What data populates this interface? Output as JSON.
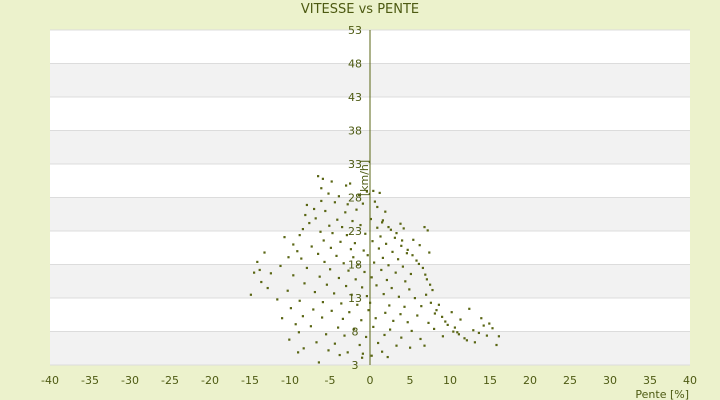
{
  "chart_data": {
    "type": "scatter",
    "title": "VITESSE vs PENTE",
    "xlabel": "Pente [%]",
    "ylabel": "[km/h]",
    "xlim": [
      -40,
      40
    ],
    "ylim": [
      3,
      53
    ],
    "xticks": [
      -40,
      -35,
      -30,
      -25,
      -20,
      -15,
      -10,
      -5,
      0,
      5,
      10,
      15,
      20,
      25,
      30,
      35,
      40
    ],
    "yticks": [
      3,
      8,
      13,
      18,
      23,
      28,
      33,
      38,
      43,
      48,
      53
    ],
    "grid": true,
    "band_colors": [
      "#ffffff",
      "#f2f2f2"
    ],
    "point_color": "#5a6614",
    "series": [
      {
        "points": [
          [
            -6.5,
            31.2
          ],
          [
            -5.9,
            30.8
          ],
          [
            -4.8,
            30.4
          ],
          [
            -2.5,
            30.1
          ],
          [
            0.4,
            29.0
          ],
          [
            -5.2,
            28.6
          ],
          [
            -3.9,
            28.2
          ],
          [
            -1.4,
            28.4
          ],
          [
            1.2,
            28.7
          ],
          [
            -6.1,
            27.5
          ],
          [
            -4.4,
            27.3
          ],
          [
            -2.8,
            27.0
          ],
          [
            -0.9,
            27.1
          ],
          [
            0.6,
            27.4
          ],
          [
            -7.0,
            26.3
          ],
          [
            -5.6,
            26.0
          ],
          [
            -3.1,
            25.8
          ],
          [
            -1.7,
            26.2
          ],
          [
            1.9,
            25.9
          ],
          [
            -8.1,
            25.4
          ],
          [
            -6.8,
            24.9
          ],
          [
            -4.1,
            24.7
          ],
          [
            -2.2,
            24.5
          ],
          [
            0.1,
            24.8
          ],
          [
            1.5,
            24.3
          ],
          [
            3.8,
            24.1
          ],
          [
            -7.6,
            24.2
          ],
          [
            -5.1,
            23.8
          ],
          [
            -3.5,
            23.6
          ],
          [
            -1.2,
            23.9
          ],
          [
            0.9,
            23.5
          ],
          [
            2.6,
            23.2
          ],
          [
            4.2,
            23.4
          ],
          [
            6.8,
            23.6
          ],
          [
            7.2,
            23.1
          ],
          [
            -8.4,
            23.3
          ],
          [
            -6.2,
            22.9
          ],
          [
            -4.7,
            22.7
          ],
          [
            -2.9,
            22.4
          ],
          [
            -0.6,
            22.6
          ],
          [
            1.3,
            22.2
          ],
          [
            3.1,
            22.0
          ],
          [
            5.4,
            21.7
          ],
          [
            -10.7,
            22.1
          ],
          [
            -5.8,
            21.6
          ],
          [
            -3.7,
            21.4
          ],
          [
            -1.9,
            21.2
          ],
          [
            0.3,
            21.5
          ],
          [
            2.0,
            21.1
          ],
          [
            3.9,
            20.8
          ],
          [
            6.2,
            20.9
          ],
          [
            -7.3,
            20.7
          ],
          [
            -4.9,
            20.5
          ],
          [
            -2.4,
            20.3
          ],
          [
            -0.8,
            20.1
          ],
          [
            1.1,
            20.4
          ],
          [
            2.8,
            19.9
          ],
          [
            4.6,
            19.7
          ],
          [
            7.4,
            19.8
          ],
          [
            -13.2,
            19.8
          ],
          [
            -9.1,
            20.0
          ],
          [
            -6.5,
            19.6
          ],
          [
            -4.2,
            19.3
          ],
          [
            -2.1,
            19.1
          ],
          [
            -0.3,
            19.4
          ],
          [
            1.6,
            19.0
          ],
          [
            3.5,
            18.8
          ],
          [
            5.8,
            18.6
          ],
          [
            -14.1,
            18.4
          ],
          [
            -8.6,
            18.9
          ],
          [
            -5.7,
            18.4
          ],
          [
            -3.3,
            18.2
          ],
          [
            -1.5,
            18.0
          ],
          [
            0.5,
            18.3
          ],
          [
            2.3,
            17.9
          ],
          [
            4.1,
            17.7
          ],
          [
            6.6,
            17.5
          ],
          [
            -11.2,
            17.8
          ],
          [
            -7.9,
            17.5
          ],
          [
            -5.0,
            17.3
          ],
          [
            -2.7,
            17.1
          ],
          [
            -0.7,
            16.9
          ],
          [
            1.4,
            17.2
          ],
          [
            3.2,
            16.8
          ],
          [
            5.1,
            16.6
          ],
          [
            -12.4,
            16.7
          ],
          [
            -9.6,
            16.4
          ],
          [
            -6.3,
            16.2
          ],
          [
            -3.9,
            16.0
          ],
          [
            -1.8,
            15.8
          ],
          [
            0.2,
            16.1
          ],
          [
            2.1,
            15.7
          ],
          [
            4.4,
            15.5
          ],
          [
            7.1,
            15.8
          ],
          [
            -13.6,
            15.4
          ],
          [
            -8.2,
            15.2
          ],
          [
            -5.4,
            15.0
          ],
          [
            -3.0,
            14.8
          ],
          [
            -1.0,
            14.6
          ],
          [
            0.8,
            14.9
          ],
          [
            2.7,
            14.5
          ],
          [
            4.9,
            14.3
          ],
          [
            7.8,
            14.2
          ],
          [
            -10.3,
            14.1
          ],
          [
            -6.9,
            13.9
          ],
          [
            -4.5,
            13.7
          ],
          [
            -2.3,
            13.5
          ],
          [
            -0.4,
            13.3
          ],
          [
            1.7,
            13.6
          ],
          [
            3.6,
            13.2
          ],
          [
            5.6,
            13.0
          ],
          [
            -14.9,
            13.5
          ],
          [
            -11.6,
            12.8
          ],
          [
            -8.8,
            12.6
          ],
          [
            -5.9,
            12.4
          ],
          [
            -3.6,
            12.2
          ],
          [
            -1.6,
            12.0
          ],
          [
            0.0,
            12.3
          ],
          [
            2.4,
            11.9
          ],
          [
            4.3,
            11.7
          ],
          [
            6.4,
            11.8
          ],
          [
            8.6,
            12.0
          ],
          [
            -9.9,
            11.5
          ],
          [
            -7.1,
            11.3
          ],
          [
            -4.8,
            11.1
          ],
          [
            -2.6,
            10.9
          ],
          [
            -0.2,
            11.2
          ],
          [
            1.9,
            10.8
          ],
          [
            3.8,
            10.6
          ],
          [
            5.9,
            10.4
          ],
          [
            8.1,
            10.7
          ],
          [
            10.2,
            10.9
          ],
          [
            12.4,
            11.4
          ],
          [
            -8.4,
            10.3
          ],
          [
            -6.0,
            10.1
          ],
          [
            -3.4,
            9.9
          ],
          [
            -1.1,
            9.7
          ],
          [
            0.7,
            10.0
          ],
          [
            2.9,
            9.6
          ],
          [
            4.7,
            9.4
          ],
          [
            7.3,
            9.3
          ],
          [
            9.4,
            9.5
          ],
          [
            11.3,
            9.8
          ],
          [
            13.9,
            10.0
          ],
          [
            -9.3,
            9.1
          ],
          [
            -7.4,
            8.8
          ],
          [
            -4.0,
            8.6
          ],
          [
            -2.0,
            8.4
          ],
          [
            0.4,
            8.7
          ],
          [
            2.5,
            8.3
          ],
          [
            5.2,
            8.1
          ],
          [
            8.0,
            8.4
          ],
          [
            10.6,
            8.6
          ],
          [
            12.9,
            8.2
          ],
          [
            15.3,
            8.5
          ],
          [
            -8.9,
            7.9
          ],
          [
            -5.5,
            7.6
          ],
          [
            -3.2,
            7.4
          ],
          [
            -0.5,
            7.2
          ],
          [
            1.8,
            7.5
          ],
          [
            3.9,
            7.1
          ],
          [
            6.3,
            6.9
          ],
          [
            9.1,
            7.3
          ],
          [
            11.8,
            7.0
          ],
          [
            14.6,
            7.4
          ],
          [
            -10.1,
            6.8
          ],
          [
            -6.7,
            6.4
          ],
          [
            -4.4,
            6.2
          ],
          [
            -1.3,
            6.0
          ],
          [
            1.0,
            6.3
          ],
          [
            3.3,
            5.9
          ],
          [
            5.0,
            5.6
          ],
          [
            6.8,
            5.9
          ],
          [
            -8.3,
            5.5
          ],
          [
            -5.2,
            5.2
          ],
          [
            -2.8,
            4.9
          ],
          [
            -0.9,
            4.7
          ],
          [
            1.5,
            5.0
          ],
          [
            -3.8,
            4.5
          ],
          [
            0.2,
            4.4
          ],
          [
            -9.0,
            4.9
          ],
          [
            -6.4,
            3.4
          ],
          [
            -1.0,
            4.1
          ],
          [
            2.2,
            4.2
          ],
          [
            15.8,
            6.0
          ],
          [
            16.1,
            7.3
          ],
          [
            13.1,
            6.4
          ],
          [
            10.9,
            7.9
          ],
          [
            -11.0,
            10.0
          ],
          [
            -12.8,
            14.5
          ],
          [
            -14.5,
            16.8
          ],
          [
            -13.8,
            17.2
          ],
          [
            -10.2,
            19.1
          ],
          [
            -9.6,
            21.0
          ],
          [
            -8.8,
            22.4
          ],
          [
            -7.9,
            26.9
          ],
          [
            -6.1,
            29.4
          ],
          [
            -3.0,
            29.8
          ],
          [
            -0.4,
            28.9
          ],
          [
            0.9,
            26.6
          ],
          [
            1.6,
            24.6
          ],
          [
            2.3,
            23.6
          ],
          [
            3.3,
            22.7
          ],
          [
            4.0,
            21.6
          ],
          [
            4.7,
            20.2
          ],
          [
            5.3,
            19.4
          ],
          [
            6.1,
            18.1
          ],
          [
            6.9,
            16.5
          ],
          [
            7.5,
            15.0
          ],
          [
            7.0,
            13.5
          ],
          [
            7.6,
            12.3
          ],
          [
            8.3,
            11.2
          ],
          [
            9.0,
            10.2
          ],
          [
            9.7,
            9.0
          ],
          [
            10.4,
            8.0
          ],
          [
            11.1,
            7.6
          ],
          [
            12.1,
            6.7
          ],
          [
            13.6,
            7.8
          ],
          [
            14.2,
            8.9
          ],
          [
            14.9,
            9.2
          ]
        ]
      }
    ]
  }
}
